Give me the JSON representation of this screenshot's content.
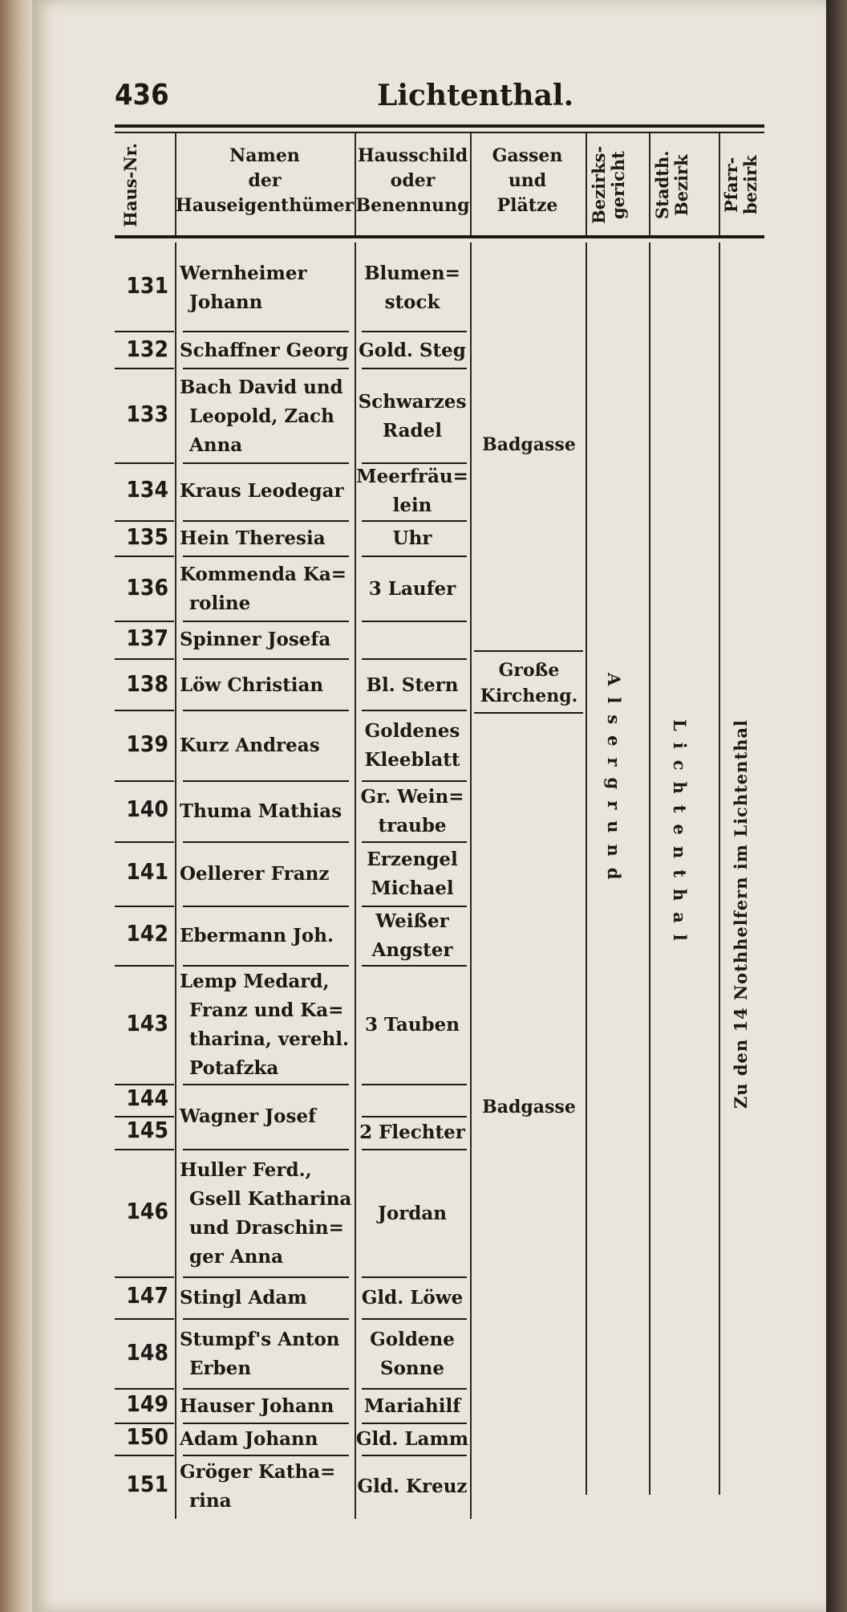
{
  "page": {
    "number": "436",
    "running_head": "Lichtenthal."
  },
  "headers": {
    "house_no": "Haus-Nr.",
    "owners": [
      "Namen",
      "der",
      "Hauseigenthümer"
    ],
    "sign": [
      "Hausschild",
      "oder",
      "Benennung"
    ],
    "streets": [
      "Gassen",
      "und",
      "Plätze"
    ],
    "district_court": "Bezirks-gericht",
    "city_district": "Stadth. Bezirk",
    "parish": "Pfarr-bezirk"
  },
  "rows": [
    {
      "no": "131",
      "owner": [
        "Wernheimer",
        "Johann"
      ],
      "sign": [
        "Blumen=",
        "stock"
      ]
    },
    {
      "no": "132",
      "owner": [
        "Schaffner Georg"
      ],
      "sign": [
        "Gold. Steg"
      ]
    },
    {
      "no": "133",
      "owner": [
        "Bach David und",
        "Leopold, Zach",
        "Anna"
      ],
      "sign": [
        "Schwarzes",
        "Radel"
      ]
    },
    {
      "no": "134",
      "owner": [
        "Kraus Leodegar"
      ],
      "sign": [
        "Meerfräu=",
        "lein"
      ]
    },
    {
      "no": "135",
      "owner": [
        "Hein Theresia"
      ],
      "sign": [
        "Uhr"
      ]
    },
    {
      "no": "136",
      "owner": [
        "Kommenda Ka=",
        "roline"
      ],
      "sign": [
        "3 Laufer"
      ]
    },
    {
      "no": "137",
      "owner": [
        "Spinner Josefa"
      ],
      "sign": []
    },
    {
      "no": "138",
      "owner": [
        "Löw Christian"
      ],
      "sign": [
        "Bl. Stern"
      ]
    },
    {
      "no": "139",
      "owner": [
        "Kurz Andreas"
      ],
      "sign": [
        "Goldenes",
        "Kleeblatt"
      ]
    },
    {
      "no": "140",
      "owner": [
        "Thuma Mathias"
      ],
      "sign": [
        "Gr. Wein=",
        "traube"
      ]
    },
    {
      "no": "141",
      "owner": [
        "Oellerer Franz"
      ],
      "sign": [
        "Erzengel",
        "Michael"
      ]
    },
    {
      "no": "142",
      "owner": [
        "Ebermann Joh."
      ],
      "sign": [
        "Weißer",
        "Angster"
      ]
    },
    {
      "no": "143",
      "owner": [
        "Lemp Medard,",
        "Franz und Ka=",
        "tharina, verehl.",
        "Potafzka"
      ],
      "sign": [
        "3 Tauben"
      ]
    },
    {
      "no": "144",
      "owner": [
        "Wagner Josef"
      ],
      "sign": []
    },
    {
      "no": "145",
      "owner": [],
      "sign": [
        "2 Flechter"
      ]
    },
    {
      "no": "146",
      "owner": [
        "Huller Ferd.,",
        "Gsell Katharina",
        "und Draschin=",
        "ger Anna"
      ],
      "sign": [
        "Jordan"
      ]
    },
    {
      "no": "147",
      "owner": [
        "Stingl Adam"
      ],
      "sign": [
        "Gld. Löwe"
      ]
    },
    {
      "no": "148",
      "owner": [
        "Stumpf's Anton",
        "Erben"
      ],
      "sign": [
        "Goldene",
        "Sonne"
      ]
    },
    {
      "no": "149",
      "owner": [
        "Hauser Johann"
      ],
      "sign": [
        "Mariahilf"
      ]
    },
    {
      "no": "150",
      "owner": [
        "Adam Johann"
      ],
      "sign": [
        "Gld. Lamm"
      ]
    },
    {
      "no": "151",
      "owner": [
        "Gröger Katha=",
        "rina"
      ],
      "sign": [
        "Gld. Kreuz"
      ]
    }
  ],
  "streets": [
    {
      "name": [
        "Badgasse"
      ]
    },
    {
      "name": [
        "Große",
        "Kircheng."
      ]
    },
    {
      "name": [
        "Badgasse"
      ]
    }
  ],
  "district_court": "Alsergrund",
  "city_district": "Lichtenthal",
  "parish": "Zu den 14 Nothhelfern im Lichtenthal"
}
